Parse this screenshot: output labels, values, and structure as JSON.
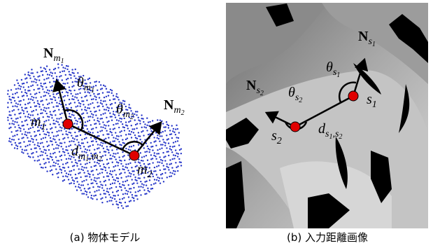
{
  "panels": [
    {
      "caption": "(a) 物体モデル",
      "labels": [
        {
          "bold": true,
          "parts": [
            {
              "text": "N",
              "level": 0
            },
            {
              "text": "m",
              "level": 1
            },
            {
              "text": "1",
              "level": 2
            }
          ]
        },
        {
          "bold": false,
          "parts": [
            {
              "text": "θ",
              "level": 0
            },
            {
              "text": "m",
              "level": 1
            },
            {
              "text": "1",
              "level": 2
            }
          ]
        },
        {
          "bold": false,
          "parts": [
            {
              "text": "θ",
              "level": 0
            },
            {
              "text": "m",
              "level": 1
            },
            {
              "text": "2",
              "level": 2
            }
          ]
        },
        {
          "bold": true,
          "parts": [
            {
              "text": "N",
              "level": 0
            },
            {
              "text": "m",
              "level": 1
            },
            {
              "text": "2",
              "level": 2
            }
          ]
        },
        {
          "bold": false,
          "parts": [
            {
              "text": "m",
              "level": 0
            },
            {
              "text": "1",
              "level": 1
            }
          ]
        },
        {
          "bold": false,
          "parts": [
            {
              "text": "d",
              "level": 0
            },
            {
              "text": "m",
              "level": 1
            },
            {
              "text": "1",
              "level": 2
            },
            {
              "text": ",",
              "level": 1
            },
            {
              "text": "m",
              "level": 1
            },
            {
              "text": "2",
              "level": 2
            }
          ]
        },
        {
          "bold": false,
          "parts": [
            {
              "text": "m",
              "level": 0
            },
            {
              "text": "2",
              "level": 1
            }
          ]
        }
      ]
    },
    {
      "caption": "(b) 入力距離画像",
      "labels": [
        {
          "bold": true,
          "parts": [
            {
              "text": "N",
              "level": 0
            },
            {
              "text": "s",
              "level": 1
            },
            {
              "text": "1",
              "level": 2
            }
          ]
        },
        {
          "bold": false,
          "parts": [
            {
              "text": "θ",
              "level": 0
            },
            {
              "text": "s",
              "level": 1
            },
            {
              "text": "1",
              "level": 2
            }
          ]
        },
        {
          "bold": true,
          "parts": [
            {
              "text": "N",
              "level": 0
            },
            {
              "text": "s",
              "level": 1
            },
            {
              "text": "2",
              "level": 2
            }
          ]
        },
        {
          "bold": false,
          "parts": [
            {
              "text": "θ",
              "level": 0
            },
            {
              "text": "s",
              "level": 1
            },
            {
              "text": "2",
              "level": 2
            }
          ]
        },
        {
          "bold": false,
          "parts": [
            {
              "text": "s",
              "level": 0
            },
            {
              "text": "1",
              "level": 1
            }
          ]
        },
        {
          "bold": false,
          "parts": [
            {
              "text": "s",
              "level": 0
            },
            {
              "text": "2",
              "level": 1
            }
          ]
        },
        {
          "bold": false,
          "parts": [
            {
              "text": "d",
              "level": 0
            },
            {
              "text": "s",
              "level": 1
            },
            {
              "text": "1",
              "level": 2
            },
            {
              "text": ",",
              "level": 1
            },
            {
              "text": "s",
              "level": 1
            },
            {
              "text": "2",
              "level": 2
            }
          ]
        }
      ]
    }
  ]
}
